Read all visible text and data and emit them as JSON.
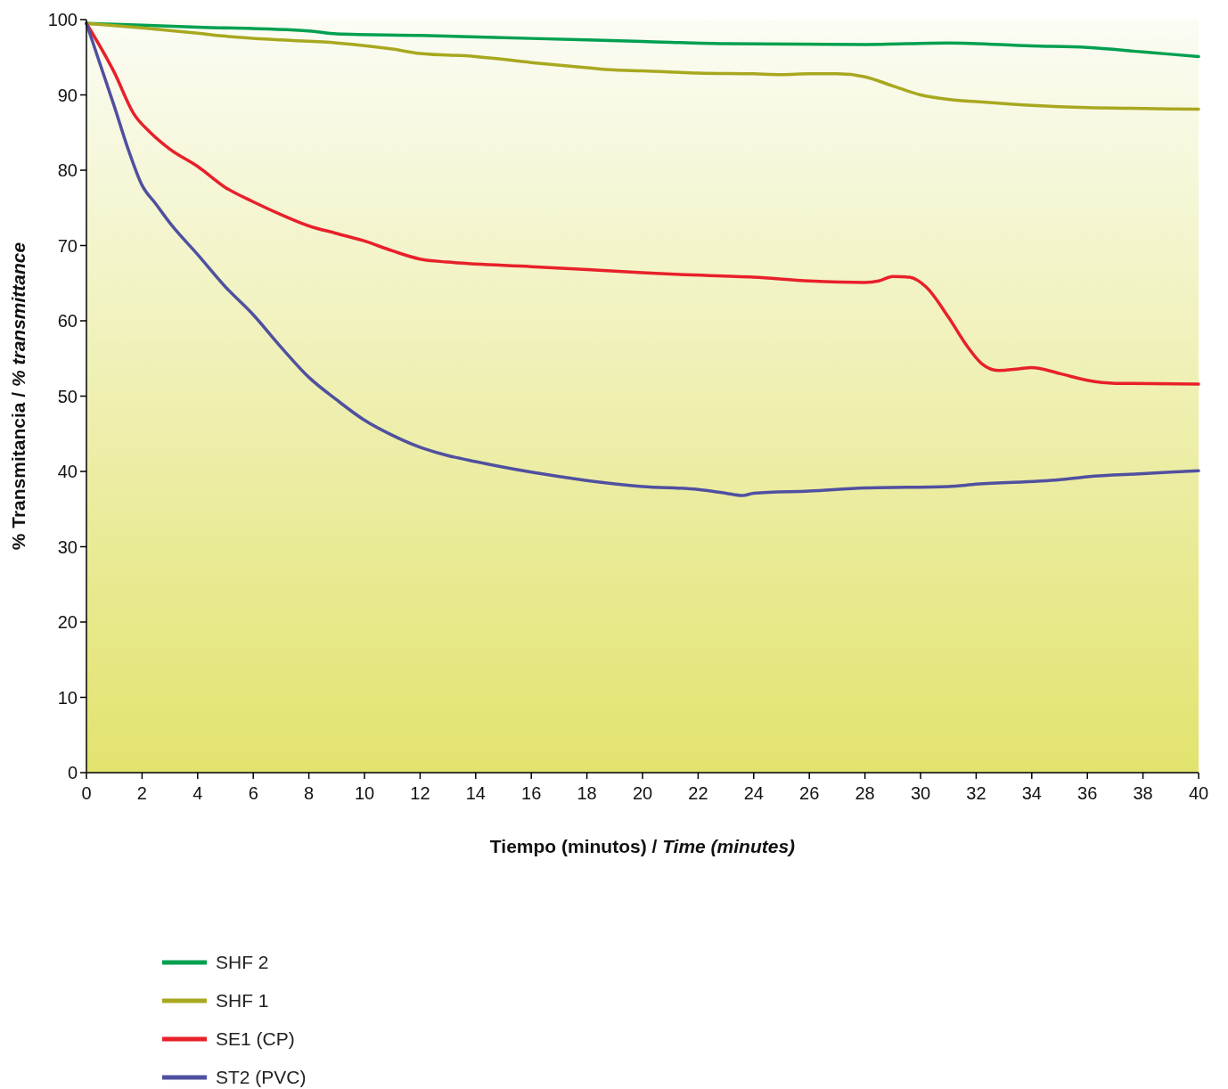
{
  "chart_data": {
    "type": "line",
    "xlabel": "Tiempo (minutos) / Time (minutes)",
    "ylabel": "% Transmitancia / % transmittance",
    "xlim": [
      0,
      40
    ],
    "ylim": [
      0,
      100
    ],
    "xticks": [
      0,
      2,
      4,
      6,
      8,
      10,
      12,
      14,
      16,
      18,
      20,
      22,
      24,
      26,
      28,
      30,
      32,
      34,
      36,
      38,
      40
    ],
    "yticks": [
      0,
      10,
      20,
      30,
      40,
      50,
      60,
      70,
      80,
      90,
      100
    ],
    "grid": false,
    "legend": "bottom left",
    "marker": "none",
    "line_style": "solid",
    "series": [
      {
        "name": "SHF 2",
        "color": "#00a050",
        "x": [
          0,
          4,
          8,
          9,
          12,
          16,
          20,
          23,
          28,
          31,
          34,
          36,
          38,
          40
        ],
        "values": [
          99.5,
          99,
          98.5,
          98.1,
          97.9,
          97.5,
          97.1,
          96.8,
          96.7,
          96.9,
          96.5,
          96.3,
          95.7,
          95.1
        ]
      },
      {
        "name": "SHF 1",
        "color": "#a8a820",
        "x": [
          0,
          2,
          4,
          5,
          7,
          9,
          11,
          12,
          14,
          16,
          18,
          19,
          20,
          22,
          24,
          25,
          26,
          27,
          28,
          29,
          30,
          31,
          32,
          34,
          36,
          38,
          40
        ],
        "values": [
          99.5,
          98.9,
          98.2,
          97.8,
          97.3,
          96.9,
          96.1,
          95.5,
          95.1,
          94.3,
          93.6,
          93.3,
          93.2,
          92.9,
          92.8,
          92.7,
          92.8,
          92.8,
          92.4,
          91.2,
          90,
          89.4,
          89.1,
          88.6,
          88.3,
          88.2,
          88.1
        ]
      },
      {
        "name": "SE1 (CP)",
        "color": "#e8202a",
        "x": [
          0,
          1,
          1.7,
          2.3,
          3,
          4,
          5,
          6,
          7,
          8,
          9,
          10,
          11,
          12,
          13,
          16,
          20,
          21,
          24,
          26,
          28,
          28.5,
          29,
          29.6,
          30.2,
          31,
          31.7,
          32.2,
          32.8,
          33.5,
          34,
          35,
          36,
          37,
          40
        ],
        "values": [
          99.5,
          93,
          87.5,
          85,
          82.8,
          80.5,
          77.7,
          75.8,
          74.1,
          72.6,
          71.6,
          70.6,
          69.3,
          68.2,
          67.8,
          67.2,
          66.4,
          66.2,
          65.8,
          65.3,
          65.1,
          65.3,
          65.9,
          65.8,
          64.5,
          60.5,
          56.5,
          54.3,
          53.4,
          53.6,
          53.8,
          53,
          52.1,
          51.7,
          51.6
        ]
      },
      {
        "name": "ST2 (PVC)",
        "color": "#5050a0",
        "x": [
          0,
          0.5,
          1,
          1.5,
          2,
          2.5,
          3,
          4,
          5,
          6,
          7,
          8,
          9,
          10,
          11,
          12,
          13,
          14,
          16,
          18,
          20,
          22,
          23,
          23.6,
          24,
          26,
          28,
          31,
          32,
          35,
          36,
          38,
          40
        ],
        "values": [
          99.5,
          94,
          88.5,
          82.8,
          78,
          75.5,
          73,
          68.8,
          64.5,
          60.8,
          56.5,
          52.5,
          49.5,
          46.8,
          44.8,
          43.2,
          42.1,
          41.3,
          39.9,
          38.8,
          38,
          37.6,
          37.1,
          36.8,
          37.1,
          37.4,
          37.8,
          38,
          38.3,
          38.9,
          39.3,
          39.7,
          40.1
        ]
      }
    ]
  }
}
